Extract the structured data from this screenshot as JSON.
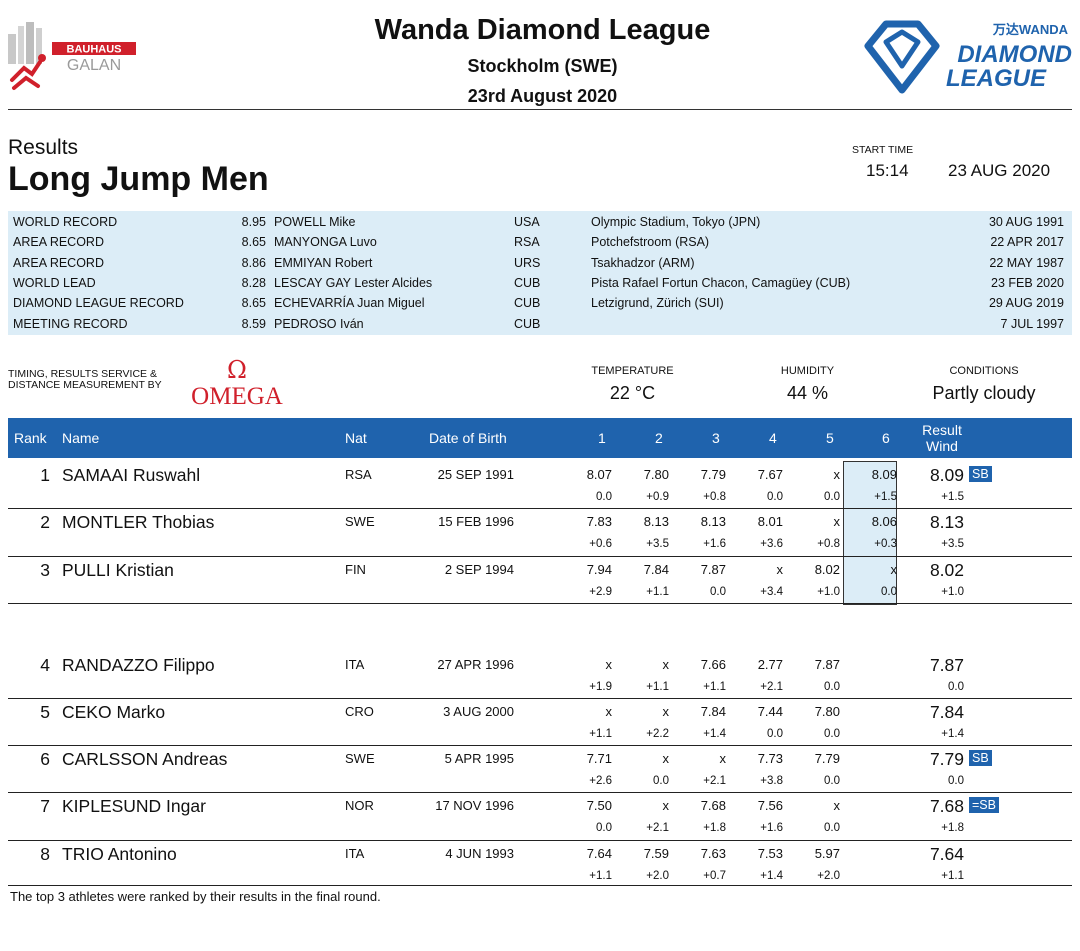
{
  "header": {
    "title": "Wanda Diamond League",
    "location": "Stockholm (SWE)",
    "date": "23rd August 2020",
    "galan_logo_text": [
      "BAUHAUS",
      "GALAN"
    ],
    "dl_logo_text": [
      "万达WANDA",
      "DIAMOND",
      "LEAGUE"
    ]
  },
  "event": {
    "kind": "Results",
    "name": "Long Jump Men",
    "start_time_label": "START TIME",
    "start_time": "15:14",
    "start_date": "23 AUG 2020"
  },
  "records": [
    {
      "type": "WORLD RECORD",
      "mark": "8.95",
      "name": "POWELL Mike",
      "nat": "USA",
      "venue": "Olympic Stadium, Tokyo (JPN)",
      "date": "30 AUG 1991"
    },
    {
      "type": "AREA RECORD",
      "mark": "8.65",
      "name": "MANYONGA Luvo",
      "nat": "RSA",
      "venue": "Potchefstroom (RSA)",
      "date": "22 APR 2017"
    },
    {
      "type": "AREA RECORD",
      "mark": "8.86",
      "name": "EMMIYAN Robert",
      "nat": "URS",
      "venue": "Tsakhadzor (ARM)",
      "date": "22 MAY 1987"
    },
    {
      "type": "WORLD LEAD",
      "mark": "8.28",
      "name": "LESCAY GAY Lester Alcides",
      "nat": "CUB",
      "venue": "Pista Rafael Fortun Chacon, Camagüey (CUB)",
      "date": "23 FEB 2020"
    },
    {
      "type": "DIAMOND LEAGUE RECORD",
      "mark": "8.65",
      "name": "ECHEVARRÍA Juan Miguel",
      "nat": "CUB",
      "venue": "Letzigrund, Zürich (SUI)",
      "date": "29 AUG 2019"
    },
    {
      "type": "MEETING RECORD",
      "mark": "8.59",
      "name": "PEDROSO Iván",
      "nat": "CUB",
      "venue": "",
      "date": "7 JUL 1997"
    }
  ],
  "timing": {
    "label_line1": "TIMING, RESULTS SERVICE &",
    "label_line2": "DISTANCE MEASUREMENT BY",
    "omega_symbol": "Ω",
    "omega_text": "OMEGA"
  },
  "conditions": {
    "temperature_label": "TEMPERATURE",
    "temperature": "22 °C",
    "humidity_label": "HUMIDITY",
    "humidity": "44 %",
    "conditions_label": "CONDITIONS",
    "conditions": "Partly cloudy"
  },
  "table_header": {
    "rank": "Rank",
    "name": "Name",
    "nat": "Nat",
    "dob": "Date of Birth",
    "attempts": [
      "1",
      "2",
      "3",
      "4",
      "5",
      "6"
    ],
    "result": "Result",
    "wind": "Wind"
  },
  "athletes": [
    {
      "rank": "1",
      "name": "SAMAAI Ruswahl",
      "nat": "RSA",
      "dob": "25 SEP 1991",
      "marks": [
        "8.07",
        "7.80",
        "7.79",
        "7.67",
        "x",
        "8.09"
      ],
      "winds": [
        "0.0",
        "+0.9",
        "+0.8",
        "0.0",
        "0.0",
        "+1.5"
      ],
      "result": "8.09",
      "result_wind": "+1.5",
      "badge": "SB"
    },
    {
      "rank": "2",
      "name": "MONTLER Thobias",
      "nat": "SWE",
      "dob": "15 FEB 1996",
      "marks": [
        "7.83",
        "8.13",
        "8.13",
        "8.01",
        "x",
        "8.06"
      ],
      "winds": [
        "+0.6",
        "+3.5",
        "+1.6",
        "+3.6",
        "+0.8",
        "+0.3"
      ],
      "result": "8.13",
      "result_wind": "+3.5",
      "badge": ""
    },
    {
      "rank": "3",
      "name": "PULLI Kristian",
      "nat": "FIN",
      "dob": "2 SEP 1994",
      "marks": [
        "7.94",
        "7.84",
        "7.87",
        "x",
        "8.02",
        "x"
      ],
      "winds": [
        "+2.9",
        "+1.1",
        "0.0",
        "+3.4",
        "+1.0",
        "0.0"
      ],
      "result": "8.02",
      "result_wind": "+1.0",
      "badge": ""
    },
    {
      "rank": "4",
      "name": "RANDAZZO Filippo",
      "nat": "ITA",
      "dob": "27 APR 1996",
      "marks": [
        "x",
        "x",
        "7.66",
        "2.77",
        "7.87",
        ""
      ],
      "winds": [
        "+1.9",
        "+1.1",
        "+1.1",
        "+2.1",
        "0.0",
        ""
      ],
      "result": "7.87",
      "result_wind": "0.0",
      "badge": ""
    },
    {
      "rank": "5",
      "name": "CEKO Marko",
      "nat": "CRO",
      "dob": "3 AUG 2000",
      "marks": [
        "x",
        "x",
        "7.84",
        "7.44",
        "7.80",
        ""
      ],
      "winds": [
        "+1.1",
        "+2.2",
        "+1.4",
        "0.0",
        "0.0",
        ""
      ],
      "result": "7.84",
      "result_wind": "+1.4",
      "badge": ""
    },
    {
      "rank": "6",
      "name": "CARLSSON Andreas",
      "nat": "SWE",
      "dob": "5 APR 1995",
      "marks": [
        "7.71",
        "x",
        "x",
        "7.73",
        "7.79",
        ""
      ],
      "winds": [
        "+2.6",
        "0.0",
        "+2.1",
        "+3.8",
        "0.0",
        ""
      ],
      "result": "7.79",
      "result_wind": "0.0",
      "badge": "SB"
    },
    {
      "rank": "7",
      "name": "KIPLESUND Ingar",
      "nat": "NOR",
      "dob": "17 NOV 1996",
      "marks": [
        "7.50",
        "x",
        "7.68",
        "7.56",
        "x",
        ""
      ],
      "winds": [
        "0.0",
        "+2.1",
        "+1.8",
        "+1.6",
        "0.0",
        ""
      ],
      "result": "7.68",
      "result_wind": "+1.8",
      "badge": "=SB"
    },
    {
      "rank": "8",
      "name": "TRIO Antonino",
      "nat": "ITA",
      "dob": "4 JUN 1993",
      "marks": [
        "7.64",
        "7.59",
        "7.63",
        "7.53",
        "5.97",
        ""
      ],
      "winds": [
        "+1.1",
        "+2.0",
        "+0.7",
        "+1.4",
        "+2.0",
        ""
      ],
      "result": "7.64",
      "result_wind": "+1.1",
      "badge": ""
    }
  ],
  "footnote": "The top 3 athletes were ranked by their results in the final round.",
  "colors": {
    "accent_blue": "#1f63ad",
    "record_bg": "#dcedf7",
    "galan_red": "#d0202b"
  }
}
